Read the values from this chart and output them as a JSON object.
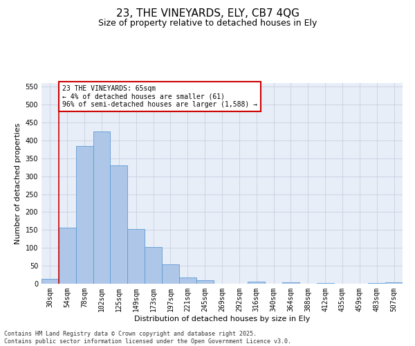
{
  "title": "23, THE VINEYARDS, ELY, CB7 4QG",
  "subtitle": "Size of property relative to detached houses in Ely",
  "xlabel": "Distribution of detached houses by size in Ely",
  "ylabel": "Number of detached properties",
  "bar_labels": [
    "30sqm",
    "54sqm",
    "78sqm",
    "102sqm",
    "125sqm",
    "149sqm",
    "173sqm",
    "197sqm",
    "221sqm",
    "245sqm",
    "269sqm",
    "292sqm",
    "316sqm",
    "340sqm",
    "364sqm",
    "388sqm",
    "412sqm",
    "435sqm",
    "459sqm",
    "483sqm",
    "507sqm"
  ],
  "bar_values": [
    13,
    157,
    385,
    425,
    330,
    152,
    102,
    55,
    18,
    10,
    0,
    0,
    5,
    0,
    4,
    0,
    2,
    0,
    0,
    1,
    3
  ],
  "bar_color": "#aec6e8",
  "bar_edge_color": "#5b9bd5",
  "background_color": "#e8eef8",
  "grid_color": "#c8d0e0",
  "red_line_x": 1.5,
  "annotation_text": "23 THE VINEYARDS: 65sqm\n← 4% of detached houses are smaller (61)\n96% of semi-detached houses are larger (1,588) →",
  "annotation_box_color": "#ffffff",
  "annotation_border_color": "#cc0000",
  "ylim": [
    0,
    560
  ],
  "yticks": [
    0,
    50,
    100,
    150,
    200,
    250,
    300,
    350,
    400,
    450,
    500,
    550
  ],
  "footer_text": "Contains HM Land Registry data © Crown copyright and database right 2025.\nContains public sector information licensed under the Open Government Licence v3.0.",
  "title_fontsize": 11,
  "subtitle_fontsize": 9,
  "axis_label_fontsize": 8,
  "tick_fontsize": 7,
  "annotation_fontsize": 7,
  "footer_fontsize": 6
}
